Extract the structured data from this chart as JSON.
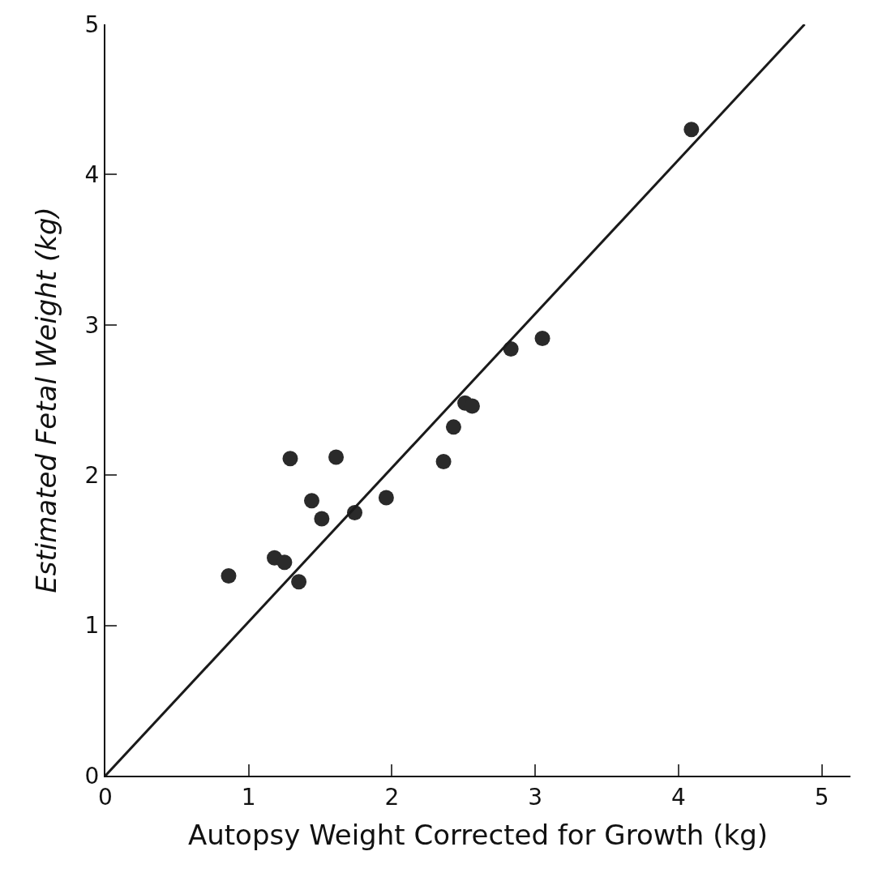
{
  "chart_data": {
    "type": "scatter",
    "xlabel": "Autopsy Weight Corrected for Growth (kg)",
    "ylabel": "Estimated Fetal Weight (kg)",
    "xlim": [
      0,
      5.2
    ],
    "ylim": [
      0,
      5
    ],
    "xticks": [
      0,
      1,
      2,
      3,
      4,
      5
    ],
    "yticks": [
      0,
      1,
      2,
      3,
      4,
      5
    ],
    "grid": false,
    "legend": false,
    "marker": "circle",
    "series": [
      {
        "color": "#2a2a2a",
        "x": [
          0.86,
          1.18,
          1.25,
          1.29,
          1.35,
          1.44,
          1.51,
          1.61,
          1.74,
          1.96,
          2.36,
          2.43,
          2.51,
          2.56,
          2.83,
          3.05,
          4.09
        ],
        "values": [
          1.33,
          1.45,
          1.42,
          2.11,
          1.29,
          1.83,
          1.71,
          2.12,
          1.75,
          1.85,
          2.09,
          2.32,
          2.48,
          2.46,
          2.84,
          2.91,
          4.3
        ]
      },
      {
        "type": "line",
        "color": "#1a1a1a",
        "marker": "none",
        "line_style": "solid",
        "x": [
          0,
          4.88
        ],
        "values": [
          0,
          5
        ]
      }
    ]
  }
}
